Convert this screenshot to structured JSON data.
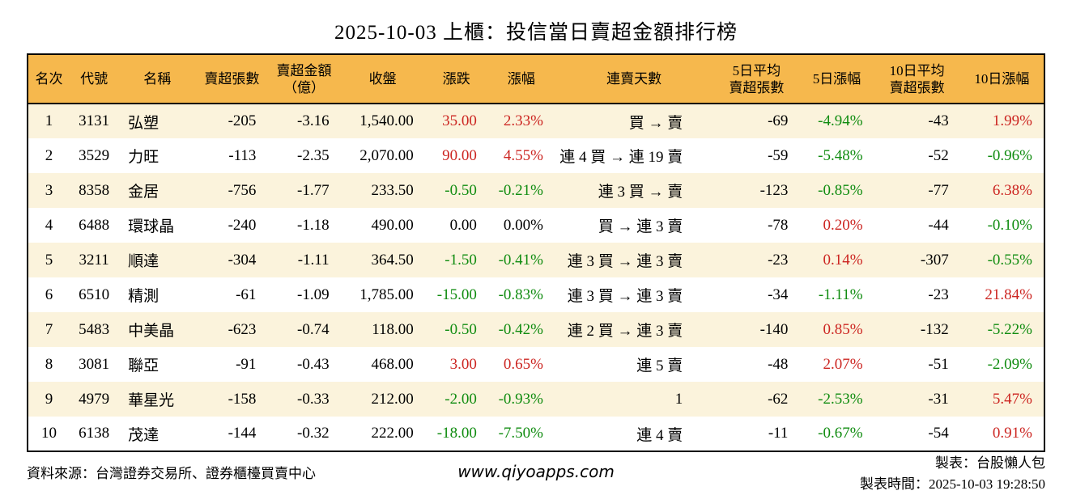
{
  "title": "2025-10-03 上櫃：投信當日賣超金額排行榜",
  "colors": {
    "header_bg": "#F6B84D",
    "row_stripe_bg": "#FBF3DC",
    "up_red": "#CC2521",
    "down_green": "#108C10"
  },
  "chart_data": {
    "type": "table",
    "title": "2025-10-03 上櫃：投信當日賣超金額排行榜",
    "columns": [
      "名次",
      "代號",
      "名稱",
      "賣超張數",
      "賣超金額\n（億）",
      "收盤",
      "漲跌",
      "漲幅",
      "連賣天數",
      "5日平均\n賣超張數",
      "5日漲幅",
      "10日平均\n賣超張數",
      "10日漲幅"
    ],
    "rows": [
      {
        "rank": "1",
        "code": "3131",
        "name": "弘塑",
        "sell_volume": "-205",
        "sell_amount": "-3.16",
        "close": "1,540.00",
        "change": "35.00",
        "change_dir": "up",
        "change_pct": "2.33%",
        "change_pct_dir": "up",
        "streak": "買 → 賣",
        "avg5_volume": "-69",
        "pct5": "-4.94%",
        "pct5_dir": "down",
        "avg10_volume": "-43",
        "pct10": "1.99%",
        "pct10_dir": "up"
      },
      {
        "rank": "2",
        "code": "3529",
        "name": "力旺",
        "sell_volume": "-113",
        "sell_amount": "-2.35",
        "close": "2,070.00",
        "change": "90.00",
        "change_dir": "up",
        "change_pct": "4.55%",
        "change_pct_dir": "up",
        "streak": "連 4 買 → 連 19 賣",
        "avg5_volume": "-59",
        "pct5": "-5.48%",
        "pct5_dir": "down",
        "avg10_volume": "-52",
        "pct10": "-0.96%",
        "pct10_dir": "down"
      },
      {
        "rank": "3",
        "code": "8358",
        "name": "金居",
        "sell_volume": "-756",
        "sell_amount": "-1.77",
        "close": "233.50",
        "change": "-0.50",
        "change_dir": "down",
        "change_pct": "-0.21%",
        "change_pct_dir": "down",
        "streak": "連 3 買 → 賣",
        "avg5_volume": "-123",
        "pct5": "-0.85%",
        "pct5_dir": "down",
        "avg10_volume": "-77",
        "pct10": "6.38%",
        "pct10_dir": "up"
      },
      {
        "rank": "4",
        "code": "6488",
        "name": "環球晶",
        "sell_volume": "-240",
        "sell_amount": "-1.18",
        "close": "490.00",
        "change": "0.00",
        "change_dir": "flat",
        "change_pct": "0.00%",
        "change_pct_dir": "flat",
        "streak": "買 → 連 3 賣",
        "avg5_volume": "-78",
        "pct5": "0.20%",
        "pct5_dir": "up",
        "avg10_volume": "-44",
        "pct10": "-0.10%",
        "pct10_dir": "down"
      },
      {
        "rank": "5",
        "code": "3211",
        "name": "順達",
        "sell_volume": "-304",
        "sell_amount": "-1.11",
        "close": "364.50",
        "change": "-1.50",
        "change_dir": "down",
        "change_pct": "-0.41%",
        "change_pct_dir": "down",
        "streak": "連 3 買 → 連 3 賣",
        "avg5_volume": "-23",
        "pct5": "0.14%",
        "pct5_dir": "up",
        "avg10_volume": "-307",
        "pct10": "-0.55%",
        "pct10_dir": "down"
      },
      {
        "rank": "6",
        "code": "6510",
        "name": "精測",
        "sell_volume": "-61",
        "sell_amount": "-1.09",
        "close": "1,785.00",
        "change": "-15.00",
        "change_dir": "down",
        "change_pct": "-0.83%",
        "change_pct_dir": "down",
        "streak": "連 3 買 → 連 3 賣",
        "avg5_volume": "-34",
        "pct5": "-1.11%",
        "pct5_dir": "down",
        "avg10_volume": "-23",
        "pct10": "21.84%",
        "pct10_dir": "up"
      },
      {
        "rank": "7",
        "code": "5483",
        "name": "中美晶",
        "sell_volume": "-623",
        "sell_amount": "-0.74",
        "close": "118.00",
        "change": "-0.50",
        "change_dir": "down",
        "change_pct": "-0.42%",
        "change_pct_dir": "down",
        "streak": "連 2 買 → 連 3 賣",
        "avg5_volume": "-140",
        "pct5": "0.85%",
        "pct5_dir": "up",
        "avg10_volume": "-132",
        "pct10": "-5.22%",
        "pct10_dir": "down"
      },
      {
        "rank": "8",
        "code": "3081",
        "name": "聯亞",
        "sell_volume": "-91",
        "sell_amount": "-0.43",
        "close": "468.00",
        "change": "3.00",
        "change_dir": "up",
        "change_pct": "0.65%",
        "change_pct_dir": "up",
        "streak": "連 5 賣",
        "avg5_volume": "-48",
        "pct5": "2.07%",
        "pct5_dir": "up",
        "avg10_volume": "-51",
        "pct10": "-2.09%",
        "pct10_dir": "down"
      },
      {
        "rank": "9",
        "code": "4979",
        "name": "華星光",
        "sell_volume": "-158",
        "sell_amount": "-0.33",
        "close": "212.00",
        "change": "-2.00",
        "change_dir": "down",
        "change_pct": "-0.93%",
        "change_pct_dir": "down",
        "streak": "1",
        "avg5_volume": "-62",
        "pct5": "-2.53%",
        "pct5_dir": "down",
        "avg10_volume": "-31",
        "pct10": "5.47%",
        "pct10_dir": "up"
      },
      {
        "rank": "10",
        "code": "6138",
        "name": "茂達",
        "sell_volume": "-144",
        "sell_amount": "-0.32",
        "close": "222.00",
        "change": "-18.00",
        "change_dir": "down",
        "change_pct": "-7.50%",
        "change_pct_dir": "down",
        "streak": "連 4 賣",
        "avg5_volume": "-11",
        "pct5": "-0.67%",
        "pct5_dir": "down",
        "avg10_volume": "-54",
        "pct10": "0.91%",
        "pct10_dir": "up"
      }
    ]
  },
  "footer": {
    "source": "資料來源：台灣證券交易所、證券櫃檯買賣中心",
    "website": "www.qiyoapps.com",
    "author": "製表：台股懶人包",
    "generated": "製表時間：2025-10-03 19:28:50"
  }
}
